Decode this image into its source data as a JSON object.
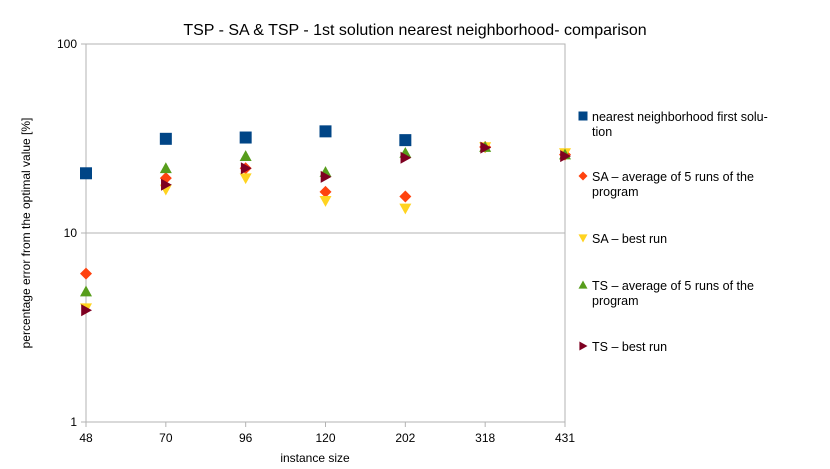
{
  "chart_data": {
    "type": "scatter",
    "title": "TSP - SA & TSP - 1st solution nearest neighborhood- comparison",
    "xlabel": "instance size",
    "ylabel": "percentage error from the optimal value [%]",
    "y_scale": "log",
    "ylim": [
      1,
      100
    ],
    "y_ticks": [
      "1",
      "10",
      "100"
    ],
    "categories": [
      "48",
      "70",
      "96",
      "120",
      "202",
      "318",
      "431"
    ],
    "grid": "horizontal major gridlines",
    "legend_position": "right",
    "series": [
      {
        "name": "nearest neighborhood first solu- tion",
        "legend_lines": [
          "nearest neighborhood first solu-",
          "tion"
        ],
        "marker": "square",
        "color": "#004586",
        "values": [
          20.7,
          31.5,
          32.0,
          34.5,
          31.0,
          null,
          null
        ]
      },
      {
        "name": "SA – average of 5 runs of the program",
        "legend_lines": [
          "SA – average of 5 runs of the",
          "program"
        ],
        "marker": "diamond",
        "color": "#ff420e",
        "values": [
          6.1,
          19.5,
          22.0,
          16.5,
          15.6,
          28.5,
          26.0
        ]
      },
      {
        "name": "SA – best run",
        "legend_lines": [
          "SA – best run"
        ],
        "marker": "triangle-down",
        "color": "#ffd320",
        "values": [
          4.0,
          17.0,
          19.5,
          14.8,
          13.5,
          28.5,
          26.5
        ]
      },
      {
        "name": "TS – average of 5 runs of the program",
        "legend_lines": [
          "TS – average of 5 runs of the",
          "program"
        ],
        "marker": "triangle-up",
        "color": "#579d1c",
        "values": [
          4.9,
          22.0,
          25.5,
          21.0,
          26.5,
          28.5,
          26.0
        ]
      },
      {
        "name": "TS – best run",
        "legend_lines": [
          "TS – best run"
        ],
        "marker": "triangle-right",
        "color": "#7e0021",
        "values": [
          3.9,
          18.0,
          22.0,
          19.8,
          25.0,
          28.3,
          25.5
        ]
      }
    ]
  }
}
